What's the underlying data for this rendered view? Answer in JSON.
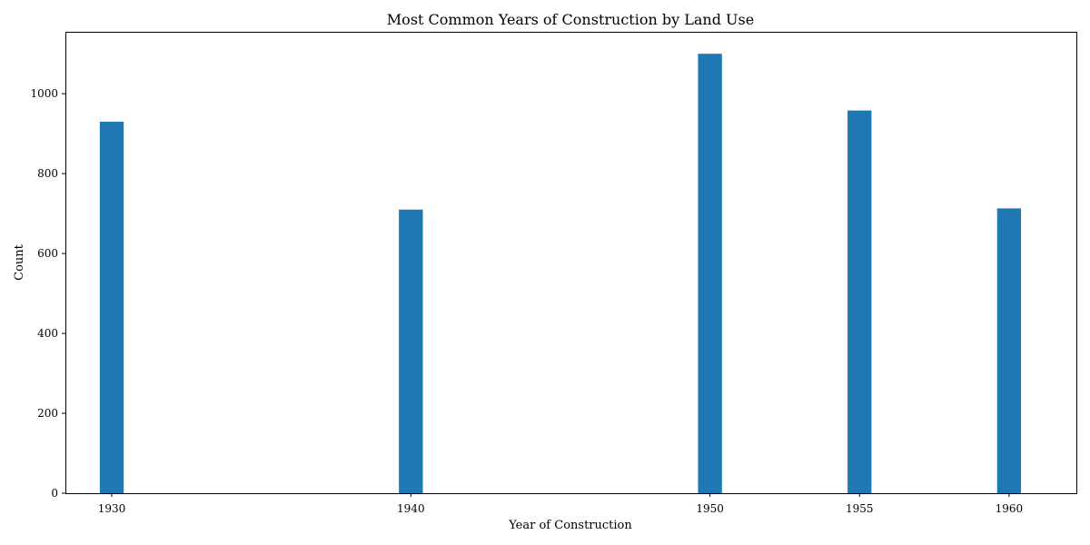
{
  "chart_data": {
    "type": "bar",
    "title": "Most Common Years of Construction by Land Use",
    "xlabel": "Year of Construction",
    "ylabel": "Count",
    "x": [
      1930,
      1940,
      1950,
      1955,
      1960
    ],
    "x_tick_labels": [
      "1930",
      "1940",
      "1950",
      "1955",
      "1960"
    ],
    "values": [
      930,
      710,
      1100,
      958,
      713
    ],
    "xlim": [
      1928.45,
      1962.25
    ],
    "ylim": [
      0,
      1155
    ],
    "y_ticks": [
      0,
      200,
      400,
      600,
      800,
      1000
    ],
    "y_tick_labels": [
      "0",
      "200",
      "400",
      "600",
      "800",
      "1000"
    ],
    "bar_width_years": 0.8,
    "grid": false,
    "bar_color": "#1f77b4"
  }
}
